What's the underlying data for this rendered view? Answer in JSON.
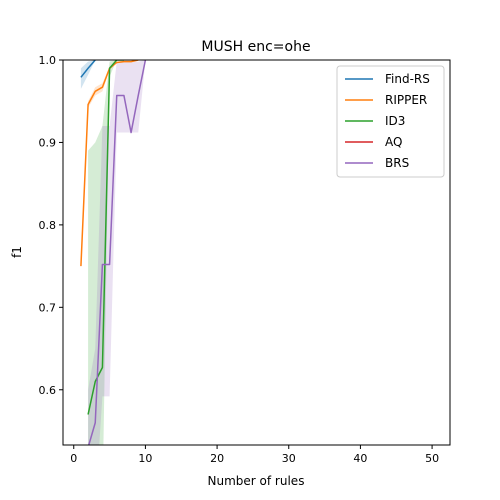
{
  "chart_data": {
    "type": "line",
    "title": "MUSH enc=ohe",
    "xlabel": "Number of rules",
    "ylabel": "f1",
    "xlim": [
      -1.5,
      52.5
    ],
    "ylim": [
      0.533,
      1.0
    ],
    "xticks": [
      0,
      10,
      20,
      30,
      40,
      50
    ],
    "yticks": [
      0.6,
      0.7,
      0.8,
      0.9,
      1.0
    ],
    "xtick_labels": [
      "0",
      "10",
      "20",
      "30",
      "40",
      "50"
    ],
    "ytick_labels": [
      "0.6",
      "0.7",
      "0.8",
      "0.9",
      "1.0"
    ],
    "grid": false,
    "legend_position": "top-right",
    "series": [
      {
        "name": "Find-RS",
        "color": "#1f77b4",
        "x": [
          1,
          2,
          3
        ],
        "y": [
          0.979,
          0.99,
          1.0
        ],
        "band_lower": [
          0.965,
          0.982,
          1.0
        ],
        "band_upper": [
          0.99,
          0.998,
          1.0
        ]
      },
      {
        "name": "RIPPER",
        "color": "#ff7f0e",
        "x": [
          1,
          2,
          3,
          4,
          5,
          6,
          7,
          8,
          9
        ],
        "y": [
          0.75,
          0.946,
          0.962,
          0.967,
          0.99,
          0.997,
          0.998,
          0.998,
          1.0
        ],
        "band_lower": [
          0.75,
          0.942,
          0.957,
          0.962,
          0.988,
          0.996,
          0.997,
          0.997,
          1.0
        ],
        "band_upper": [
          0.75,
          0.95,
          0.967,
          0.972,
          0.992,
          0.998,
          0.999,
          0.999,
          1.0
        ]
      },
      {
        "name": "ID3",
        "color": "#2ca02c",
        "x": [
          2,
          3,
          4,
          5,
          6,
          7
        ],
        "y": [
          0.57,
          0.61,
          0.627,
          0.99,
          1.0,
          1.0
        ],
        "band_lower": [
          0.46,
          0.46,
          0.46,
          0.98,
          1.0,
          1.0
        ],
        "band_upper": [
          0.89,
          0.9,
          0.92,
          0.998,
          1.0,
          1.0
        ]
      },
      {
        "name": "AQ",
        "color": "#d62728",
        "x": [],
        "y": [],
        "band_lower": [],
        "band_upper": []
      },
      {
        "name": "BRS",
        "color": "#9467bd",
        "x": [
          2,
          3,
          4,
          5,
          6,
          7,
          8,
          9,
          10
        ],
        "y": [
          0.53,
          0.56,
          0.752,
          0.752,
          0.957,
          0.957,
          0.912,
          0.957,
          1.0
        ],
        "band_lower": [
          0.46,
          0.46,
          0.592,
          0.592,
          0.912,
          0.912,
          0.912,
          0.912,
          1.0
        ],
        "band_upper": [
          0.6,
          0.65,
          0.92,
          0.92,
          0.998,
          0.998,
          0.998,
          0.998,
          1.0
        ]
      }
    ]
  }
}
